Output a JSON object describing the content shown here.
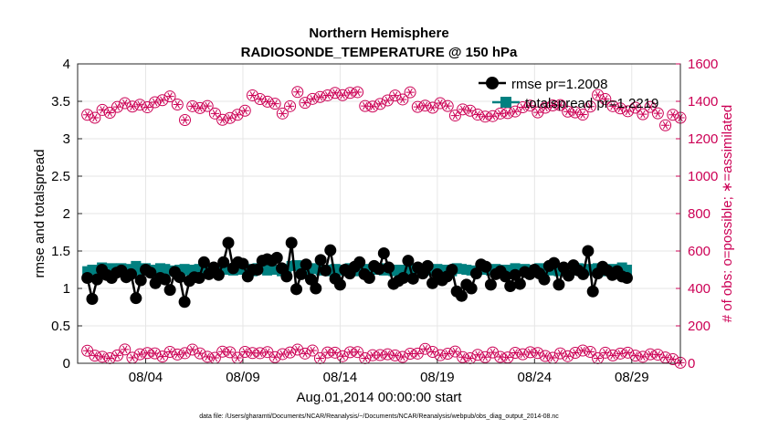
{
  "chart_data": {
    "type": "line",
    "title_line1": "Northern Hemisphere",
    "title_line2": "RADIOSONDE_TEMPERATURE @ 150 hPa",
    "xlabel": "Aug.01,2014 00:00:00 start",
    "ylabel_left": "rmse and totalspread",
    "ylabel_right": "# of obs: o=possible; ∗=assimilated",
    "footnote": "data file: /Users/gharamti/Documents/NCAR/Reanalysis/~/Documents/NCAR/Reanalysis/webpub/obs_diag_output_2014-08.nc",
    "xlim": [
      0.5,
      31.5
    ],
    "ylim_left": [
      0,
      4
    ],
    "ylim_right": [
      0,
      1600
    ],
    "x_ticks": [
      {
        "day": 4,
        "label": "08/04"
      },
      {
        "day": 9,
        "label": "08/09"
      },
      {
        "day": 14,
        "label": "08/14"
      },
      {
        "day": 19,
        "label": "08/19"
      },
      {
        "day": 24,
        "label": "08/24"
      },
      {
        "day": 29,
        "label": "08/29"
      }
    ],
    "y_ticks_left": [
      "0",
      "0.5",
      "1",
      "1.5",
      "2",
      "2.5",
      "3",
      "3.5",
      "4"
    ],
    "y_ticks_right": [
      "0",
      "200",
      "400",
      "600",
      "800",
      "1000",
      "1200",
      "1400",
      "1600"
    ],
    "legend": {
      "position": "top-right",
      "rmse": "rmse pr=1.2008",
      "spread": "totalspread pr=1.2219"
    },
    "colors": {
      "rmse": "#000000",
      "spread": "#008080",
      "obs": "#cc0055",
      "grid": "#e6e6e6"
    },
    "interval_days": 0.25,
    "rmse_values": [
      1.14,
      0.86,
      1.12,
      1.25,
      1.18,
      1.14,
      1.21,
      1.24,
      1.15,
      1.19,
      0.87,
      1.11,
      1.25,
      1.21,
      1.07,
      1.14,
      1.12,
      0.98,
      1.22,
      1.15,
      0.82,
      1.1,
      1.15,
      1.14,
      1.35,
      1.19,
      1.28,
      1.18,
      1.35,
      1.61,
      1.27,
      1.35,
      1.33,
      1.16,
      1.25,
      1.25,
      1.37,
      1.39,
      1.37,
      1.41,
      1.27,
      1.16,
      1.61,
      0.99,
      1.19,
      1.32,
      1.12,
      1.0,
      1.38,
      1.24,
      1.51,
      1.13,
      1.05,
      1.25,
      1.2,
      1.29,
      1.35,
      1.19,
      1.14,
      1.3,
      1.26,
      1.47,
      1.28,
      1.06,
      1.1,
      1.14,
      1.37,
      1.13,
      1.28,
      1.2,
      1.3,
      1.07,
      1.19,
      1.11,
      1.16,
      1.25,
      0.96,
      0.9,
      1.05,
      1.0,
      1.2,
      1.32,
      1.29,
      1.05,
      1.19,
      1.23,
      1.16,
      1.03,
      1.18,
      1.06,
      1.22,
      1.19,
      1.25,
      1.2,
      1.12,
      1.3,
      1.34,
      1.05,
      1.28,
      1.17,
      1.31,
      1.24,
      1.19,
      1.5,
      0.96,
      1.2,
      1.29,
      1.24,
      1.18,
      1.23,
      1.16,
      1.14
    ],
    "spread_values": [
      1.23,
      1.25,
      1.24,
      1.28,
      1.25,
      1.27,
      1.26,
      1.27,
      1.24,
      1.26,
      1.3,
      1.24,
      1.27,
      1.24,
      1.25,
      1.27,
      1.26,
      1.23,
      1.24,
      1.25,
      1.26,
      1.24,
      1.25,
      1.26,
      1.27,
      1.24,
      1.26,
      1.23,
      1.25,
      1.27,
      1.24,
      1.25,
      1.28,
      1.26,
      1.23,
      1.27,
      1.26,
      1.24,
      1.25,
      1.25,
      1.23,
      1.26,
      1.3,
      1.31,
      1.25,
      1.24,
      1.26,
      1.27,
      1.24,
      1.25,
      1.23,
      1.26,
      1.25,
      1.24,
      1.27,
      1.25,
      1.23,
      1.26,
      1.24,
      1.25,
      1.27,
      1.24,
      1.26,
      1.23,
      1.25,
      1.25,
      1.24,
      1.27,
      1.26,
      1.23,
      1.25,
      1.24,
      1.26,
      1.24,
      1.25,
      1.23,
      1.27,
      1.26,
      1.25,
      1.24,
      1.23,
      1.25,
      1.26,
      1.24,
      1.26,
      1.25,
      1.23,
      1.25,
      1.27,
      1.24,
      1.26,
      1.24,
      1.25,
      1.27,
      1.25,
      1.24,
      1.26,
      1.23,
      1.25,
      1.26,
      1.24,
      1.27,
      1.25,
      1.26,
      1.24,
      1.27,
      1.25,
      1.23,
      1.26,
      1.24,
      1.28,
      1.25
    ],
    "obs_possible_high": [
      1328,
      1312,
      1354,
      1339,
      1370,
      1390,
      1372,
      1382,
      1368,
      1395,
      1406,
      1426,
      1383,
      1300,
      1374,
      1364,
      1375,
      1335,
      1301,
      1311,
      1328,
      1350,
      1432,
      1412,
      1398,
      1387,
      1335,
      1374,
      1450,
      1392,
      1413,
      1423,
      1432,
      1445,
      1433,
      1445,
      1449,
      1375,
      1372,
      1386,
      1405,
      1431,
      1410,
      1448,
      1370,
      1377,
      1366,
      1390,
      1375,
      1324,
      1357,
      1350,
      1329,
      1318,
      1321,
      1335,
      1337,
      1346,
      1368,
      1377,
      1341,
      1366,
      1378,
      1380,
      1345,
      1341,
      1329,
      1372,
      1434,
      1412,
      1374,
      1362,
      1347,
      1366,
      1331,
      1370,
      1336,
      1272,
      1328,
      1312
    ],
    "obs_possible_low": [
      67,
      41,
      35,
      27,
      42,
      74,
      30,
      48,
      55,
      53,
      36,
      61,
      47,
      54,
      73,
      53,
      35,
      29,
      62,
      59,
      29,
      61,
      55,
      54,
      60,
      33,
      49,
      58,
      73,
      52,
      68,
      27,
      58,
      57,
      38,
      59,
      60,
      27,
      43,
      44,
      48,
      42,
      34,
      51,
      52,
      77,
      61,
      43,
      51,
      63,
      33,
      27,
      45,
      33,
      58,
      34,
      31,
      56,
      48,
      59,
      55,
      39,
      29,
      53,
      38,
      56,
      68,
      61,
      27,
      57,
      42,
      52,
      57,
      41,
      35,
      48,
      46,
      31,
      22,
      3
    ]
  }
}
